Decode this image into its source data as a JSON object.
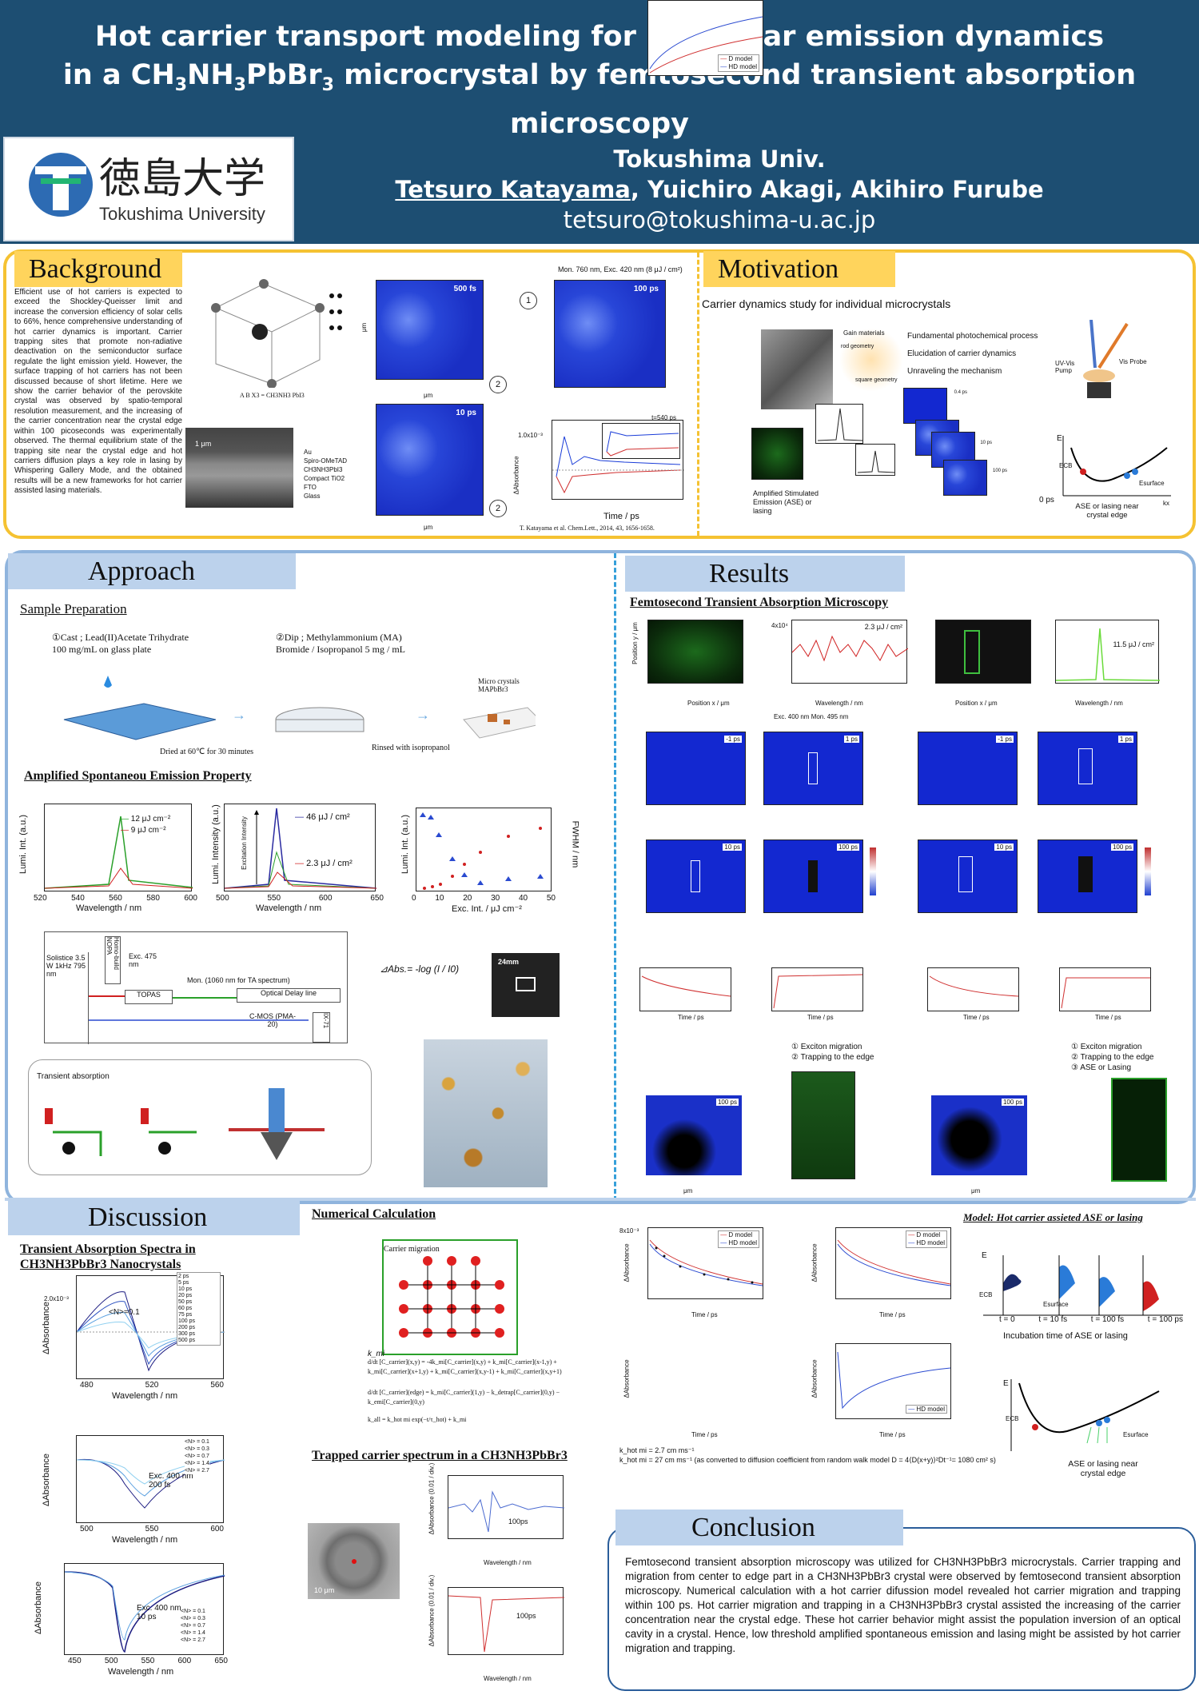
{
  "header": {
    "title_line1": "Hot carrier transport modeling for nonlinear emission dynamics",
    "title_line2_a": "in a CH",
    "title_line2_b": "NH",
    "title_line2_c": "PbBr",
    "title_line2_d": " microcrystal by femtosecond transient absorption microscopy",
    "sub3": "3",
    "institution": "Tokushima Univ.",
    "author_main": "Tetsuro Katayama",
    "authors_rest": ", Yuichiro Akagi, Akihiro Furube",
    "email": "tetsuro@tokushima-u.ac.jp",
    "logo_jp": "徳島大学",
    "logo_en": "Tokushima University"
  },
  "background": {
    "heading": "Background",
    "text": "Efficient use of hot carriers is expected to exceed the Shockley-Queisser limit and increase the conversion efficiency of solar cells to 66%, hence comprehensive understanding of hot carrier dynamics is important. Carrier trapping sites that promote non-radiative deactivation on the semiconductor surface regulate the light emission yield. However, the surface trapping of hot carriers has not been discussed because of short lifetime. Here we show the carrier behavior of the perovskite crystal was observed by spatio-temporal resolution measurement, and the increasing of the carrier concentration near the crystal edge within 100 picoseconds was experimentally observed. The thermal equilibrium state of the trapping site near the crystal edge and hot carriers diffusion plays a key role in lasing by Whispering Gallery Mode, and the obtained results will be a new frameworks for hot carrier assisted lasing materials.",
    "formula": "A B X3 = CH3NH3 PbI3",
    "layers": [
      "Au",
      "Spiro-OMeTAD",
      "CH3NH3PbI3",
      "Compact TiO2",
      "FTO",
      "Glass"
    ],
    "scale": "1 μm",
    "map_labels": [
      "500 fs",
      "100 ps",
      "10 ps"
    ],
    "mon_label": "Mon. 760 nm, Exc. 420 nm (8 μJ / cm²)",
    "ylabel_um": "μm",
    "xlabel_um": "μm",
    "dabs": "ΔAbs.",
    "kinetic_ylabel": "ΔAbsorbance",
    "kinetic_xlabel": "Time / ps",
    "kinetic_scale": "1.0x10⁻³",
    "inset_label": "t=540 ps",
    "circle1": "1",
    "circle2": "2",
    "citation": "T. Katayama et al. Chem.Lett., 2014, 43, 1656-1658."
  },
  "motivation": {
    "heading": "Motivation",
    "subtitle": "Carrier dynamics study for individual microcrystals",
    "gain": "Gain materials",
    "rod": "rod geometry",
    "square": "square geometry",
    "items": [
      "Fundamental photochemical process",
      "Elucidation of carrier dynamics",
      "Unraveling the mechanism"
    ],
    "ase": "Amplified Stimulated Emission (ASE) or lasing",
    "pump": "UV-Vis Pump",
    "probe": "Vis Probe",
    "E": "E",
    "Ecb": "ECB",
    "Esurface": "Esurface",
    "zero": "0 ps",
    "kx": "kx",
    "ase_near": "ASE or lasing near crystal edge",
    "tags": [
      "0.4 ps",
      "10 ps",
      "100 ps"
    ]
  },
  "approach": {
    "heading": "Approach",
    "sample_prep": "Sample Preparation",
    "step1": "①Cast ; Lead(II)Acetate Trihydrate 100 mg/mL on glass plate",
    "step2": "②Dip ; Methylammonium (MA) Bromide / Isopropanol 5 mg / mL",
    "micro": "Micro crystals MAPbBr3",
    "dried": "Dried at 60℃ for 30 minutes",
    "rinsed": "Rinsed with isopropanol",
    "ase_title": "Amplified Spontaneou Emission Property",
    "legend1": [
      "12 μJ cm⁻²",
      "9 μJ cm⁻²"
    ],
    "legend2": [
      "46 μJ / cm²",
      "2.3 μJ / cm²"
    ],
    "ylabel1": "Lumi. Int. (a.u.)",
    "ylabel2": "Lumi. Intensity (a.u.)",
    "excitation_int": "Excitation Intensity",
    "xlabel_wl": "Wavelength / nm",
    "ylabel3": "Lumi. Int. (a.u.)",
    "ylabel3r": "FWHM / nm",
    "xlabel3": "Exc. Int. / μJ cm⁻²",
    "setup": {
      "solistice": "Solistice 3.5 W 1kHz 795 nm",
      "homo": "Homo-build NOPA",
      "exc": "Exc. 475 nm",
      "topas": "TOPAS",
      "mon": "Mon. (1060 nm for TA spectrum)",
      "delay": "Optical Delay line",
      "cmos": "C-MOS (PMA-20)",
      "ix": "IX-71",
      "ta": "Transient absorption"
    },
    "formula": "⊿Abs.= -log (I / I0)",
    "scalebar": "24mm"
  },
  "results": {
    "heading": "Results",
    "ftam": "Femtosecond Transient Absorption Microscopy",
    "exc_mon": "Exc. 400 nm Mon. 495 nm",
    "fluence_left": "2.3 μJ / cm²",
    "fluence_right": "11.5 μJ / cm²",
    "pos_y": "Position y / μm",
    "pos_x": "Position x / μm",
    "wl": "Wavelength / nm",
    "scale4": "4x10⁴",
    "maps": [
      "-1 ps",
      "1 ps",
      "10 ps",
      "100 ps"
    ],
    "um": "μm",
    "time_ps": "Time / ps",
    "list_left": [
      "① Exciton migration",
      "② Trapping to the edge"
    ],
    "list_right": [
      "① Exciton migration",
      "② Trapping to the edge",
      "③ ASE or Lasing"
    ],
    "label100": "100 ps",
    "dabs": "ΔAbs."
  },
  "discussion": {
    "heading": "Discussion",
    "ta_title": "Transient Absorption Spectra in CH3NH3PbBr3 Nanocrystals",
    "legend_times": [
      "2 ps",
      "5 ps",
      "10 ps",
      "20 ps",
      "50 ps",
      "60 ps",
      "75 ps",
      "100 ps",
      "200 ps",
      "300 ps",
      "500 ps"
    ],
    "n_label": "<N>=0.1",
    "legend_n": [
      "<N> = 0.1",
      "<N> = 0.3",
      "<N> = 0.7",
      "<N> = 1.4",
      "<N> = 2.7"
    ],
    "exc200": "Exc. 400 nm 200 fs",
    "exc10": "Exc. 400 nm 10 ps",
    "ylabel": "ΔAbsorbance",
    "xlabel": "Wavelength / nm",
    "y_scale": "2.0x10⁻³",
    "num_calc": "Numerical Calculation",
    "carrier_migration": "Carrier migration",
    "kmi": "k_mi",
    "eq1": "d/dt [C_carrier](x,y) = -4k_mi[C_carrier](x,y) + k_mi[C_carrier](x-1,y) + k_mi[C_carrier](x+1,y) + k_mi[C_carrier](x,y-1) + k_mi[C_carrier](x,y+1)",
    "eq2": "d/dt [C_carrier](edge) = k_mi[C_carrier](1,y) − k_detrap[C_carrier](0,y) − k_emi[C_carrier](0,y)",
    "eq3": "k_all = k_hot mi exp(−t/τ_hot) + k_mi",
    "models": [
      "D model",
      "HD model"
    ],
    "time": "Time / ps",
    "dabs": "ΔAbsorbance",
    "k1": "k_hot mi = 2.7 cm ms⁻¹",
    "k2": "k_hot mi = 27 cm ms⁻¹ (as converted to diffusion coefficient from random walk model D = 4⟨D(x+y)⟩²Dt⁻¹= 1080 cm² s)",
    "scale_8": "8x10⁻³",
    "trapped_title": "Trapped carrier spectrum in a CH3NH3PbBr3",
    "scale10": "10 μm",
    "ta_div": "ΔAbsorbance (0.01 / div.)",
    "ps100": "100ps",
    "model_title": "Model: Hot carrier assieted ASE or lasing",
    "incubation": "Incubation time of ASE or lasing",
    "t_labels": [
      "t = 0",
      "t = 10 fs",
      "t = 100 fs",
      "t = 100 ps"
    ],
    "E": "E",
    "Ecb": "ECB",
    "Esurface": "Esurface",
    "ase_near": "ASE or lasing near crystal edge"
  },
  "conclusion": {
    "heading": "Conclusion",
    "text": "Femtosecond transient absorption microscopy was utilized for CH3NH3PbBr3 microcrystals. Carrier trapping and migration from center to edge part in a CH3NH3PbBr3 crystal were observed by femtosecond transient absorption microscopy. Numerical calculation with a hot carrier difussion model revealed hot carrier migration and trapping within 100 ps. Hot carrier migration and trapping in a CH3NH3PbBr3 crystal assisted the increasing of the carrier concentration near the crystal edge. These hot carrier behavior might assist the population inversion of an optical cavity in a crystal. Hence, low threshold amplified spontaneous emission and lasing might be assisted by hot carrier migration and trapping."
  },
  "colors": {
    "header": "#1d4e72",
    "yellow": "#ffd45c",
    "blue_tab": "#bcd2ec",
    "border_yellow": "#f5c232",
    "border_blue": "#8fb4dd",
    "dashed": "#36a0da"
  }
}
